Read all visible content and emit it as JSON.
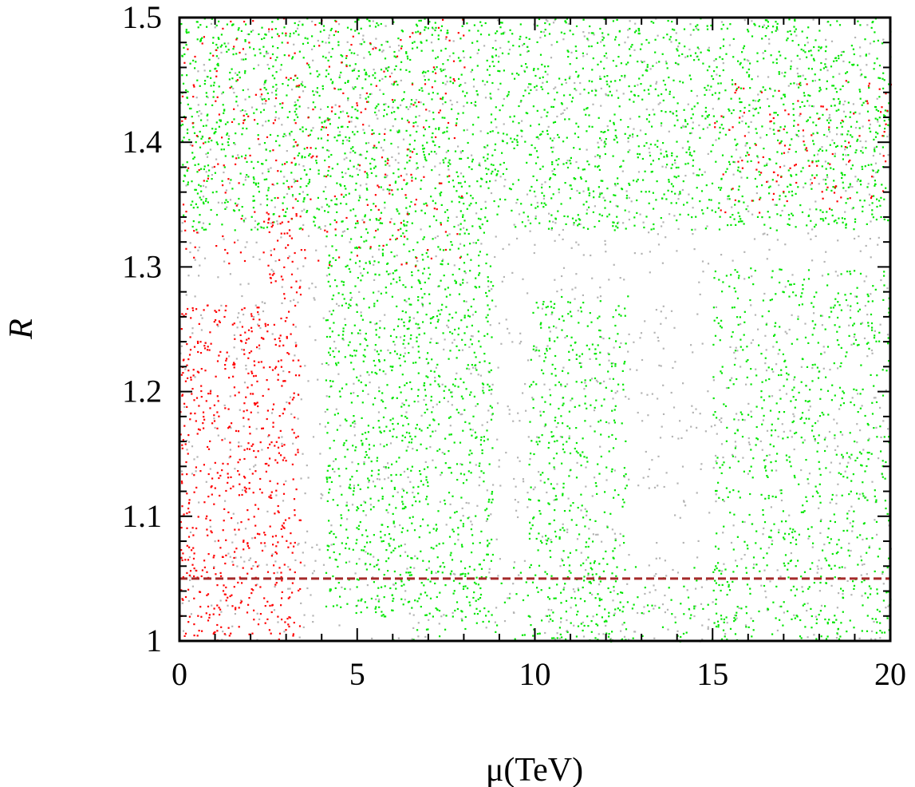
{
  "chart_data": {
    "type": "scatter",
    "title": "",
    "xlabel": "μ(TeV)",
    "ylabel": "R",
    "xlim": [
      0,
      20
    ],
    "ylim": [
      1.0,
      1.5
    ],
    "x_ticks": [
      0,
      5,
      10,
      15,
      20
    ],
    "x_tick_labels": [
      "0",
      "5",
      "10",
      "15",
      "20"
    ],
    "y_ticks": [
      1.0,
      1.1,
      1.2,
      1.3,
      1.4,
      1.5
    ],
    "y_tick_labels": [
      "1",
      "1.1",
      "1.2",
      "1.3",
      "1.4",
      "1.5"
    ],
    "x_minor_step": 1,
    "y_minor_step": 0.02,
    "grid": false,
    "legend": "none",
    "reference_line": {
      "y": 1.05,
      "style": "dashed",
      "color": "#a52a2a"
    },
    "series": [
      {
        "color": "#b4b4b4",
        "regions": [
          {
            "x": [
              0.0,
              20.0
            ],
            "y": [
              1.0,
              1.5
            ],
            "density": 0.25
          }
        ]
      },
      {
        "color": "#00e600",
        "regions": [
          {
            "x": [
              0.0,
              20.0
            ],
            "y": [
              1.33,
              1.5
            ],
            "density": 1.0
          },
          {
            "x": [
              4.1,
              8.8
            ],
            "y": [
              1.02,
              1.33
            ],
            "density": 1.0
          },
          {
            "x": [
              9.8,
              12.6
            ],
            "y": [
              1.0,
              1.28
            ],
            "density": 0.8
          },
          {
            "x": [
              15.0,
              20.0
            ],
            "y": [
              1.0,
              1.3
            ],
            "density": 0.7
          },
          {
            "x": [
              6.0,
              16.0
            ],
            "y": [
              1.0,
              1.06
            ],
            "density": 0.35
          }
        ]
      },
      {
        "color": "#ff0000",
        "regions": [
          {
            "x": [
              0.0,
              2.4
            ],
            "y": [
              1.0,
              1.27
            ],
            "density": 1.0
          },
          {
            "x": [
              2.4,
              3.4
            ],
            "y": [
              1.0,
              1.35
            ],
            "density": 0.9
          },
          {
            "x": [
              0.0,
              8.0
            ],
            "y": [
              1.3,
              1.5
            ],
            "density": 0.25
          },
          {
            "x": [
              15.0,
              20.0
            ],
            "y": [
              1.34,
              1.45
            ],
            "density": 0.3
          }
        ]
      }
    ]
  }
}
